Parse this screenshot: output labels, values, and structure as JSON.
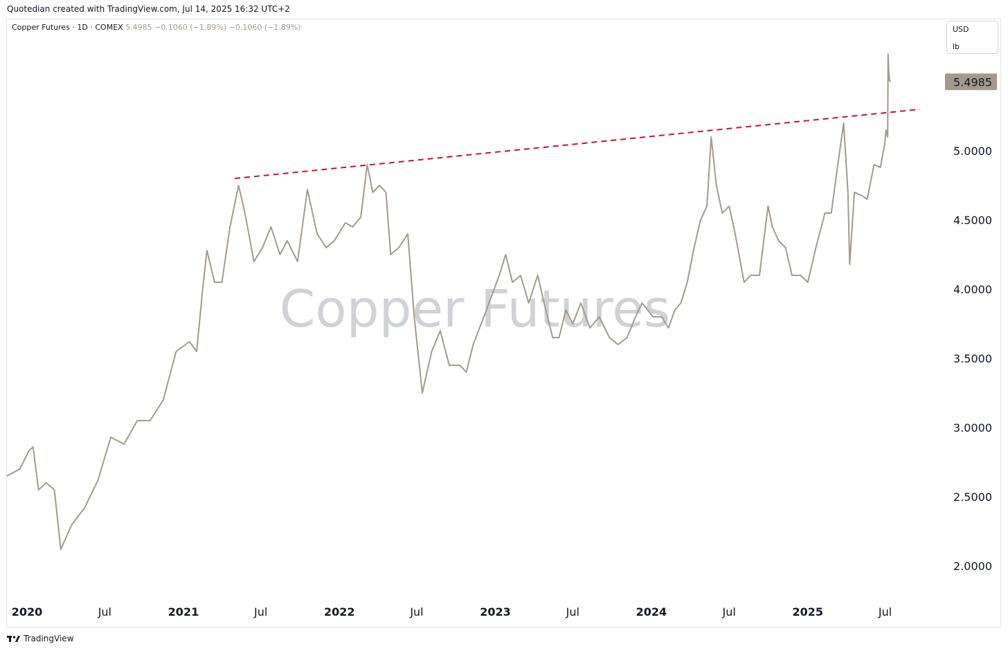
{
  "header": {
    "attribution": "Quotedian created with TradingView.com, Jul 14, 2025 16:32 UTC+2"
  },
  "legend": {
    "symbol": "Copper Futures · 1D · COMEX",
    "last": "5.4985",
    "change": "−0.1060 (−1.89%)",
    "change2": "−0.1060 (−1.89%)"
  },
  "units": {
    "currency": "USD",
    "measure": "lb"
  },
  "watermark": "Copper Futures",
  "footer": {
    "brand": "TradingView",
    "logo": "tradingview-logo"
  },
  "colors": {
    "price_line": "#a39a8e",
    "trendline": "#c8102e",
    "last_price_bg": "#a39a8e"
  },
  "chart_data": {
    "type": "line",
    "title": "Copper Futures",
    "ylabel": "USD/lb",
    "ylim": [
      1.75,
      5.95
    ],
    "yticks": [
      "2.0000",
      "2.5000",
      "3.0000",
      "3.5000",
      "4.0000",
      "4.5000",
      "5.0000"
    ],
    "xticks": [
      {
        "label": "2020",
        "date": "2020-01-01"
      },
      {
        "label": "Jul",
        "date": "2020-07-01"
      },
      {
        "label": "2021",
        "date": "2021-01-01"
      },
      {
        "label": "Jul",
        "date": "2021-07-01"
      },
      {
        "label": "2022",
        "date": "2022-01-01"
      },
      {
        "label": "Jul",
        "date": "2022-07-01"
      },
      {
        "label": "2023",
        "date": "2023-01-01"
      },
      {
        "label": "Jul",
        "date": "2023-07-01"
      },
      {
        "label": "2024",
        "date": "2024-01-01"
      },
      {
        "label": "Jul",
        "date": "2024-07-01"
      },
      {
        "label": "2025",
        "date": "2025-01-01"
      },
      {
        "label": "Jul",
        "date": "2025-07-01"
      }
    ],
    "xrange": [
      "2019-11-15",
      "2025-11-10"
    ],
    "last_price_label": "5.4985",
    "series": [
      {
        "values": [
          [
            "2019-11-15",
            2.65
          ],
          [
            "2019-12-15",
            2.7
          ],
          [
            "2020-01-05",
            2.83
          ],
          [
            "2020-01-15",
            2.86
          ],
          [
            "2020-01-28",
            2.55
          ],
          [
            "2020-02-15",
            2.6
          ],
          [
            "2020-03-05",
            2.55
          ],
          [
            "2020-03-20",
            2.12
          ],
          [
            "2020-04-15",
            2.3
          ],
          [
            "2020-05-15",
            2.42
          ],
          [
            "2020-06-15",
            2.62
          ],
          [
            "2020-07-15",
            2.93
          ],
          [
            "2020-08-15",
            2.88
          ],
          [
            "2020-09-15",
            3.05
          ],
          [
            "2020-10-15",
            3.05
          ],
          [
            "2020-11-15",
            3.2
          ],
          [
            "2020-12-15",
            3.55
          ],
          [
            "2021-01-15",
            3.62
          ],
          [
            "2021-02-01",
            3.55
          ],
          [
            "2021-02-15",
            4.0
          ],
          [
            "2021-02-25",
            4.28
          ],
          [
            "2021-03-15",
            4.05
          ],
          [
            "2021-04-01",
            4.05
          ],
          [
            "2021-04-20",
            4.45
          ],
          [
            "2021-05-10",
            4.75
          ],
          [
            "2021-05-25",
            4.55
          ],
          [
            "2021-06-15",
            4.2
          ],
          [
            "2021-07-05",
            4.3
          ],
          [
            "2021-07-25",
            4.45
          ],
          [
            "2021-08-15",
            4.25
          ],
          [
            "2021-09-01",
            4.35
          ],
          [
            "2021-09-25",
            4.2
          ],
          [
            "2021-10-18",
            4.72
          ],
          [
            "2021-11-10",
            4.4
          ],
          [
            "2021-12-01",
            4.3
          ],
          [
            "2021-12-20",
            4.35
          ],
          [
            "2022-01-15",
            4.48
          ],
          [
            "2022-02-01",
            4.45
          ],
          [
            "2022-02-20",
            4.52
          ],
          [
            "2022-03-07",
            4.9
          ],
          [
            "2022-03-20",
            4.7
          ],
          [
            "2022-04-05",
            4.75
          ],
          [
            "2022-04-20",
            4.7
          ],
          [
            "2022-05-01",
            4.25
          ],
          [
            "2022-05-20",
            4.3
          ],
          [
            "2022-06-10",
            4.4
          ],
          [
            "2022-06-25",
            3.8
          ],
          [
            "2022-07-14",
            3.25
          ],
          [
            "2022-08-05",
            3.55
          ],
          [
            "2022-08-25",
            3.7
          ],
          [
            "2022-09-15",
            3.45
          ],
          [
            "2022-10-10",
            3.45
          ],
          [
            "2022-10-25",
            3.4
          ],
          [
            "2022-11-10",
            3.6
          ],
          [
            "2022-12-05",
            3.8
          ],
          [
            "2023-01-10",
            4.1
          ],
          [
            "2023-01-25",
            4.25
          ],
          [
            "2023-02-10",
            4.05
          ],
          [
            "2023-03-01",
            4.1
          ],
          [
            "2023-03-20",
            3.9
          ],
          [
            "2023-04-10",
            4.1
          ],
          [
            "2023-04-25",
            3.9
          ],
          [
            "2023-05-15",
            3.65
          ],
          [
            "2023-05-30",
            3.65
          ],
          [
            "2023-06-15",
            3.85
          ],
          [
            "2023-07-01",
            3.75
          ],
          [
            "2023-07-20",
            3.9
          ],
          [
            "2023-08-10",
            3.72
          ],
          [
            "2023-09-01",
            3.8
          ],
          [
            "2023-09-25",
            3.65
          ],
          [
            "2023-10-15",
            3.6
          ],
          [
            "2023-11-05",
            3.65
          ],
          [
            "2023-11-25",
            3.8
          ],
          [
            "2023-12-10",
            3.9
          ],
          [
            "2024-01-05",
            3.8
          ],
          [
            "2024-01-25",
            3.8
          ],
          [
            "2024-02-10",
            3.72
          ],
          [
            "2024-02-25",
            3.85
          ],
          [
            "2024-03-10",
            3.9
          ],
          [
            "2024-03-25",
            4.05
          ],
          [
            "2024-04-10",
            4.3
          ],
          [
            "2024-04-25",
            4.5
          ],
          [
            "2024-05-10",
            4.6
          ],
          [
            "2024-05-20",
            5.1
          ],
          [
            "2024-06-01",
            4.75
          ],
          [
            "2024-06-15",
            4.55
          ],
          [
            "2024-07-01",
            4.6
          ],
          [
            "2024-07-15",
            4.4
          ],
          [
            "2024-08-05",
            4.05
          ],
          [
            "2024-08-20",
            4.1
          ],
          [
            "2024-09-10",
            4.1
          ],
          [
            "2024-09-30",
            4.6
          ],
          [
            "2024-10-10",
            4.45
          ],
          [
            "2024-10-25",
            4.35
          ],
          [
            "2024-11-10",
            4.3
          ],
          [
            "2024-11-25",
            4.1
          ],
          [
            "2024-12-15",
            4.1
          ],
          [
            "2025-01-01",
            4.05
          ],
          [
            "2025-01-20",
            4.3
          ],
          [
            "2025-02-10",
            4.55
          ],
          [
            "2025-02-25",
            4.55
          ],
          [
            "2025-03-10",
            4.85
          ],
          [
            "2025-03-26",
            5.2
          ],
          [
            "2025-04-05",
            4.7
          ],
          [
            "2025-04-09",
            4.18
          ],
          [
            "2025-04-20",
            4.7
          ],
          [
            "2025-05-05",
            4.68
          ],
          [
            "2025-05-20",
            4.65
          ],
          [
            "2025-06-05",
            4.9
          ],
          [
            "2025-06-20",
            4.88
          ],
          [
            "2025-06-30",
            5.05
          ],
          [
            "2025-07-03",
            5.15
          ],
          [
            "2025-07-07",
            5.1
          ],
          [
            "2025-07-08",
            5.7
          ],
          [
            "2025-07-09",
            5.6
          ],
          [
            "2025-07-10",
            5.55
          ],
          [
            "2025-07-11",
            5.51
          ],
          [
            "2025-07-14",
            5.4985
          ]
        ]
      },
      {
        "type": "trendline",
        "style": "dashed",
        "values": [
          [
            "2021-05-01",
            4.8
          ],
          [
            "2025-09-20",
            5.3
          ]
        ]
      }
    ]
  }
}
